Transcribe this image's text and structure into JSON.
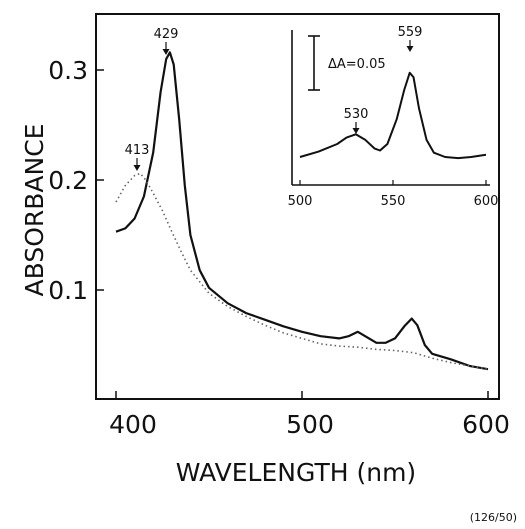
{
  "chart_data": [
    {
      "type": "line",
      "xlabel": "WAVELENGTH (nm)",
      "ylabel": "ABSORBANCE",
      "xlim": [
        400,
        600
      ],
      "ylim": [
        0,
        0.35
      ],
      "x_ticks": [
        "400",
        "500",
        "600"
      ],
      "y_ticks": [
        "0.1",
        "0.2",
        "0.3"
      ],
      "grid": false,
      "series": [
        {
          "style": "solid",
          "color": "#111111",
          "points": [
            [
              400,
              0.153
            ],
            [
              405,
              0.156
            ],
            [
              410,
              0.165
            ],
            [
              415,
              0.185
            ],
            [
              420,
              0.225
            ],
            [
              424,
              0.28
            ],
            [
              427,
              0.31
            ],
            [
              429,
              0.316
            ],
            [
              431,
              0.305
            ],
            [
              434,
              0.255
            ],
            [
              437,
              0.195
            ],
            [
              440,
              0.15
            ],
            [
              445,
              0.118
            ],
            [
              450,
              0.102
            ],
            [
              460,
              0.088
            ],
            [
              470,
              0.079
            ],
            [
              480,
              0.073
            ],
            [
              490,
              0.067
            ],
            [
              500,
              0.062
            ],
            [
              510,
              0.058
            ],
            [
              520,
              0.056
            ],
            [
              525,
              0.058
            ],
            [
              530,
              0.062
            ],
            [
              535,
              0.057
            ],
            [
              540,
              0.052
            ],
            [
              545,
              0.052
            ],
            [
              550,
              0.056
            ],
            [
              555,
              0.067
            ],
            [
              559,
              0.074
            ],
            [
              562,
              0.068
            ],
            [
              566,
              0.05
            ],
            [
              570,
              0.042
            ],
            [
              580,
              0.037
            ],
            [
              590,
              0.031
            ],
            [
              600,
              0.028
            ]
          ]
        },
        {
          "style": "dotted",
          "color": "#555555",
          "points": [
            [
              400,
              0.18
            ],
            [
              405,
              0.195
            ],
            [
              410,
              0.204
            ],
            [
              413,
              0.206
            ],
            [
              416,
              0.2
            ],
            [
              420,
              0.188
            ],
            [
              425,
              0.172
            ],
            [
              430,
              0.153
            ],
            [
              435,
              0.135
            ],
            [
              440,
              0.118
            ],
            [
              450,
              0.097
            ],
            [
              460,
              0.085
            ],
            [
              470,
              0.076
            ],
            [
              480,
              0.068
            ],
            [
              490,
              0.061
            ],
            [
              500,
              0.056
            ],
            [
              510,
              0.051
            ],
            [
              520,
              0.049
            ],
            [
              530,
              0.048
            ],
            [
              540,
              0.046
            ],
            [
              550,
              0.045
            ],
            [
              560,
              0.043
            ],
            [
              570,
              0.038
            ],
            [
              580,
              0.034
            ],
            [
              590,
              0.031
            ],
            [
              600,
              0.028
            ]
          ]
        }
      ],
      "annotations": [
        {
          "label": "429",
          "x": 429,
          "y": 0.316
        },
        {
          "label": "413",
          "x": 413,
          "y": 0.206
        }
      ]
    },
    {
      "type": "line",
      "role": "inset",
      "xlim": [
        500,
        600
      ],
      "x_ticks": [
        "500",
        "550",
        "600"
      ],
      "scale_bar_label": "ΔA=0.05",
      "scale_bar_value": 0.05,
      "grid": false,
      "series": [
        {
          "style": "solid",
          "color": "#111111",
          "points": [
            [
              500,
              0.0
            ],
            [
              510,
              0.005
            ],
            [
              520,
              0.012
            ],
            [
              525,
              0.018
            ],
            [
              530,
              0.021
            ],
            [
              535,
              0.016
            ],
            [
              540,
              0.008
            ],
            [
              543,
              0.006
            ],
            [
              547,
              0.012
            ],
            [
              552,
              0.035
            ],
            [
              556,
              0.062
            ],
            [
              559,
              0.078
            ],
            [
              561,
              0.074
            ],
            [
              564,
              0.045
            ],
            [
              568,
              0.016
            ],
            [
              572,
              0.004
            ],
            [
              578,
              0.0
            ],
            [
              585,
              -0.001
            ],
            [
              592,
              0.0
            ],
            [
              600,
              0.002
            ]
          ]
        }
      ],
      "annotations": [
        {
          "label": "530",
          "x": 530,
          "y": 0.021
        },
        {
          "label": "559",
          "x": 559,
          "y": 0.078
        }
      ]
    }
  ],
  "figure_code": "(126/50)"
}
